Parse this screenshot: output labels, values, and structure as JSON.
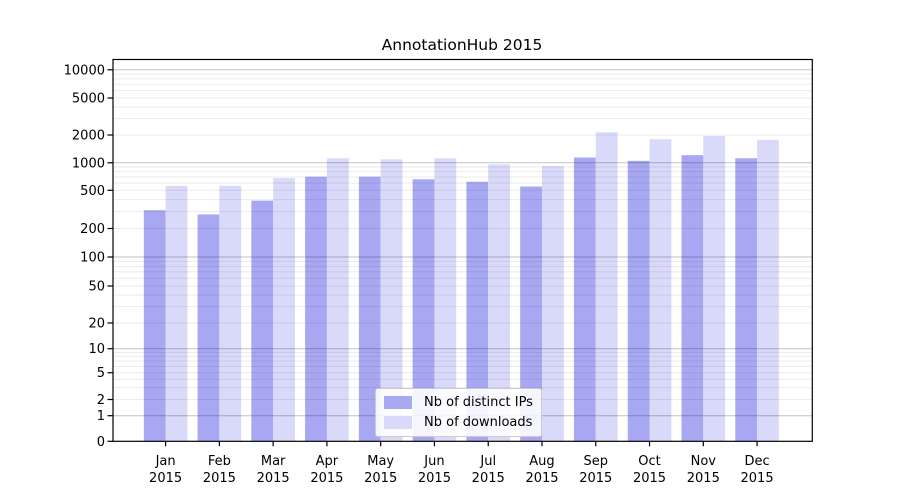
{
  "title": "AnnotationHub 2015",
  "colors": {
    "bar_ips": "#a8a8f2",
    "bar_downloads": "#d9d9f9",
    "grid_major": "rgba(0,0,0,0.24)",
    "grid_minor": "rgba(0,0,0,0.08)",
    "axis": "#000000",
    "background": "#ffffff"
  },
  "y_axis": {
    "tick_labels": [
      "0",
      "1",
      "2",
      "5",
      "10",
      "20",
      "50",
      "100",
      "200",
      "500",
      "1000",
      "2000",
      "5000",
      "10000"
    ],
    "tick_values": [
      0,
      1,
      2,
      5,
      10,
      20,
      50,
      100,
      200,
      500,
      1000,
      2000,
      5000,
      10000
    ]
  },
  "x_axis": {
    "months": [
      "Jan",
      "Feb",
      "Mar",
      "Apr",
      "May",
      "Jun",
      "Jul",
      "Aug",
      "Sep",
      "Oct",
      "Nov",
      "Dec"
    ],
    "year": "2015"
  },
  "legend": {
    "items": [
      {
        "label": "Nb of distinct IPs",
        "color_key": "bar_ips"
      },
      {
        "label": "Nb of downloads",
        "color_key": "bar_downloads"
      }
    ]
  },
  "chart_data": {
    "type": "bar",
    "title": "AnnotationHub 2015",
    "categories": [
      "Jan 2015",
      "Feb 2015",
      "Mar 2015",
      "Apr 2015",
      "May 2015",
      "Jun 2015",
      "Jul 2015",
      "Aug 2015",
      "Sep 2015",
      "Oct 2015",
      "Nov 2015",
      "Dec 2015"
    ],
    "series": [
      {
        "name": "Nb of distinct IPs",
        "values": [
          310,
          280,
          390,
          705,
          705,
          660,
          620,
          550,
          1140,
          1050,
          1210,
          1120
        ]
      },
      {
        "name": "Nb of downloads",
        "values": [
          560,
          560,
          680,
          1120,
          1090,
          1120,
          960,
          920,
          2140,
          1800,
          1950,
          1770
        ]
      }
    ],
    "xlabel": "",
    "ylabel": "",
    "yscale": "symlog",
    "yticks": [
      0,
      1,
      2,
      5,
      10,
      20,
      50,
      100,
      200,
      500,
      1000,
      2000,
      5000,
      10000
    ],
    "ylim": [
      0,
      13000
    ],
    "grid": "horizontal-major-and-minor",
    "legend_position": "lower-center-inside"
  }
}
